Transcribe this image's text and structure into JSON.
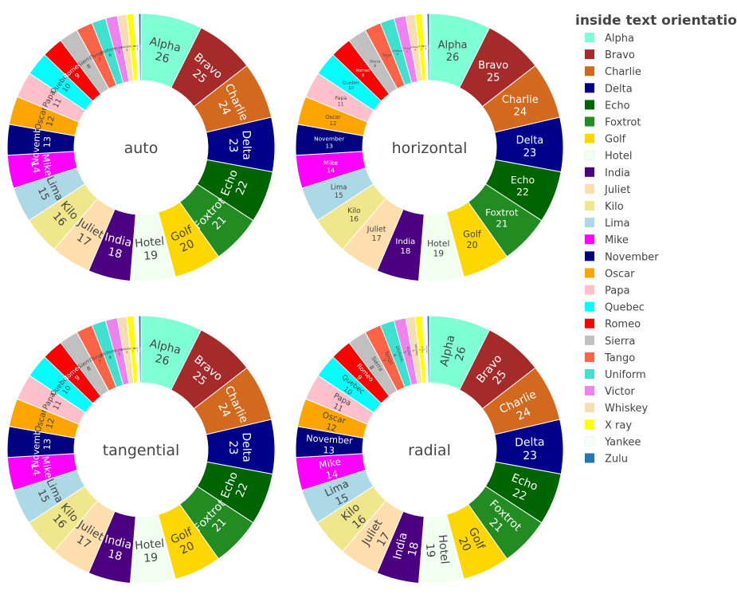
{
  "chart_data": {
    "type": "pie",
    "legend": {
      "title": "inside text orientation",
      "placement": "right"
    },
    "labels": [
      "Alpha",
      "Bravo",
      "Charlie",
      "Delta",
      "Echo",
      "Foxtrot",
      "Golf",
      "Hotel",
      "India",
      "Juliet",
      "Kilo",
      "Lima",
      "Mike",
      "November",
      "Oscar",
      "Papa",
      "Quebec",
      "Romeo",
      "Sierra",
      "Tango",
      "Uniform",
      "Victor",
      "Whiskey",
      "X ray",
      "Yankee",
      "Zulu"
    ],
    "values": [
      26,
      25,
      24,
      23,
      22,
      21,
      20,
      19,
      18,
      17,
      16,
      15,
      14,
      13,
      12,
      11,
      10,
      9,
      8,
      7,
      6,
      5,
      4,
      3,
      2,
      1
    ],
    "colors": [
      "#7fffd4",
      "#a52a2a",
      "#d2691e",
      "#00008b",
      "#006400",
      "#228b22",
      "#ffd700",
      "#f0fff0",
      "#4b0082",
      "#ffdead",
      "#f0e68c",
      "#add8e6",
      "#ff00ff",
      "#000080",
      "#ffa500",
      "#ffc0cb",
      "#00ffff",
      "#ff0000",
      "#c0c0c0",
      "#ff6347",
      "#40e0d0",
      "#ee82ee",
      "#f5deb3",
      "#ffff00",
      "#f5fffa",
      "#1f77b4"
    ],
    "hole": 0.5,
    "direction": "clockwise",
    "subplots": [
      {
        "insidetextorientation": "auto",
        "hole_text": "auto"
      },
      {
        "insidetextorientation": "horizontal",
        "hole_text": "horizontal"
      },
      {
        "insidetextorientation": "tangential",
        "hole_text": "tangential"
      },
      {
        "insidetextorientation": "radial",
        "hole_text": "radial"
      }
    ]
  }
}
